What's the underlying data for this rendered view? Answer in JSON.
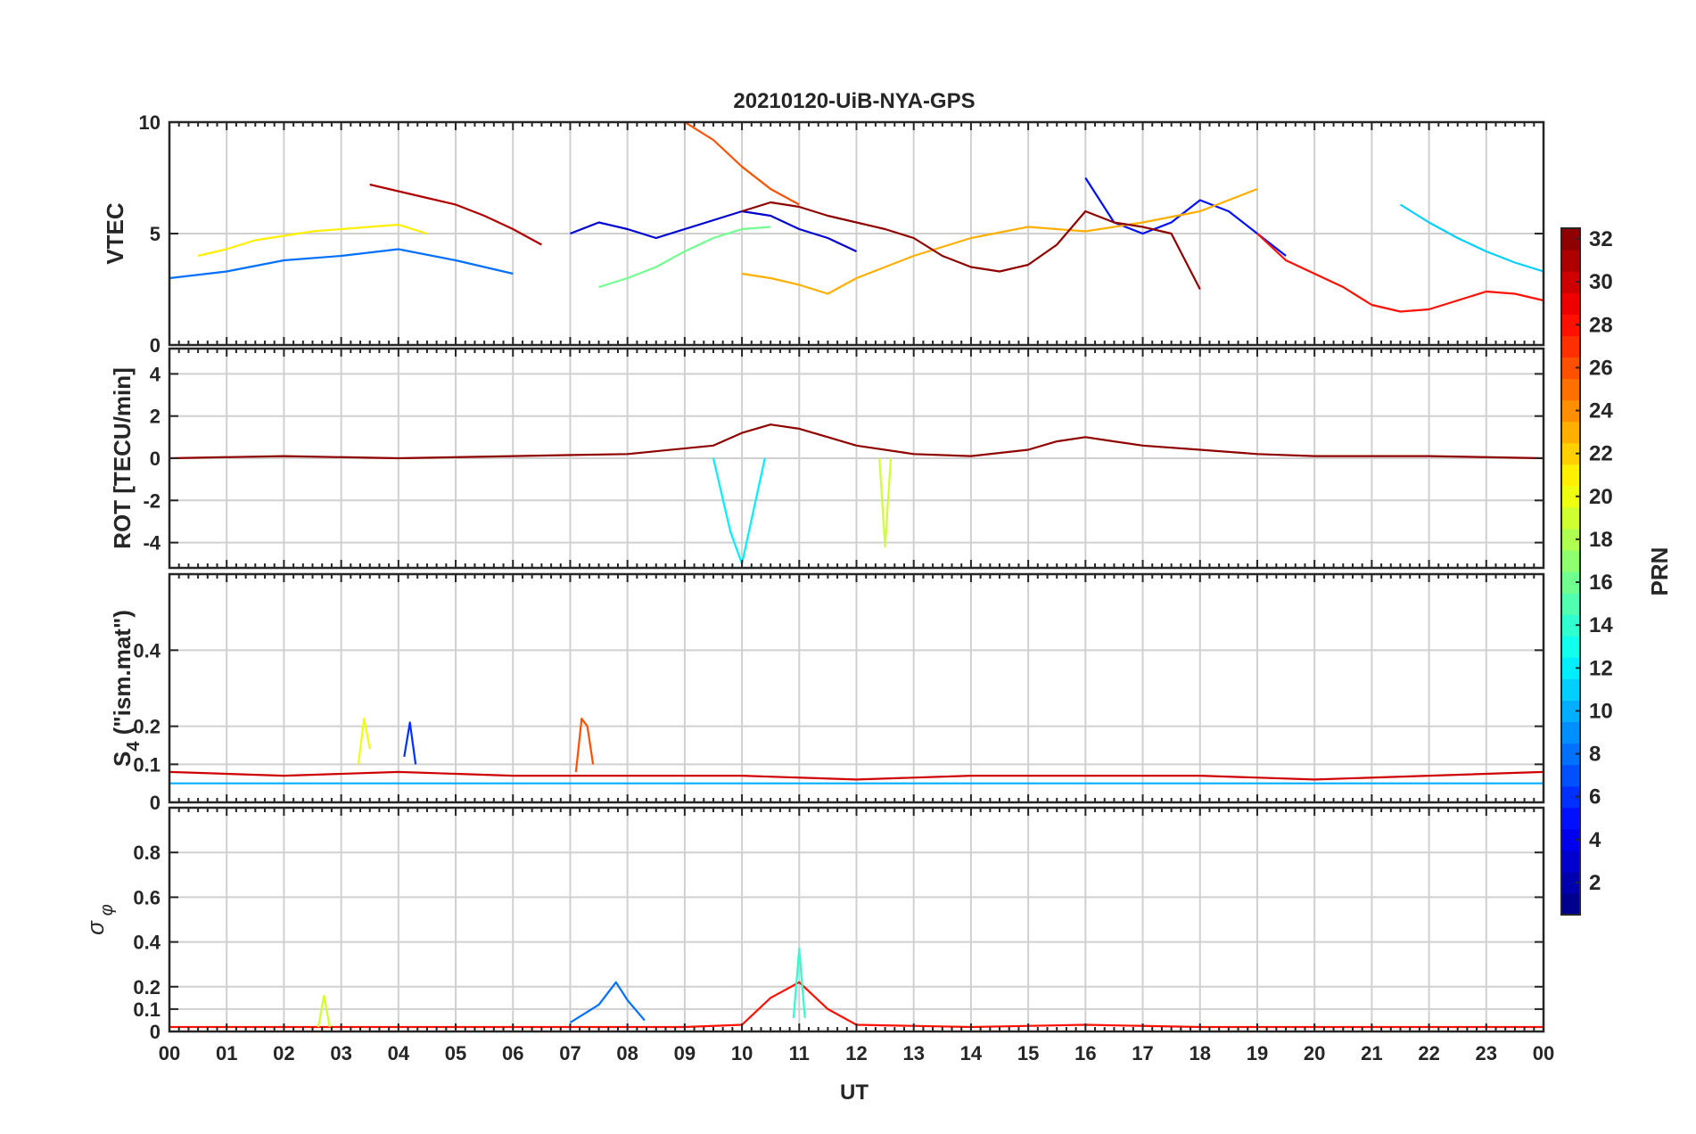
{
  "chart_data": {
    "type": "line",
    "title": "20210120-UiB-NYA-GPS",
    "xlabel": "UT",
    "x_ticks": [
      "00",
      "01",
      "02",
      "03",
      "04",
      "05",
      "06",
      "07",
      "08",
      "09",
      "10",
      "11",
      "12",
      "13",
      "14",
      "15",
      "16",
      "17",
      "18",
      "19",
      "20",
      "21",
      "22",
      "23",
      "00"
    ],
    "xlim": [
      0,
      24
    ],
    "panels": [
      {
        "name": "vtec",
        "ylabel": "VTEC",
        "ylim": [
          0,
          10
        ],
        "yticks": [
          0,
          5,
          10
        ],
        "series": [
          {
            "prn": 3,
            "x": [
              7.0,
              7.5,
              8.0,
              8.5,
              9.0,
              9.5,
              10.0,
              10.5,
              11.0,
              11.5,
              12.0
            ],
            "y": [
              5.0,
              5.5,
              5.2,
              4.8,
              5.2,
              5.6,
              6.0,
              5.8,
              5.2,
              4.8,
              4.2
            ]
          },
          {
            "prn": 5,
            "x": [
              16.0,
              16.5,
              17.0,
              17.5,
              18.0,
              18.5,
              19.0,
              19.5
            ],
            "y": [
              7.5,
              5.5,
              5.0,
              5.5,
              6.5,
              6.0,
              5.0,
              4.0
            ]
          },
          {
            "prn": 8,
            "x": [
              0.0,
              1.0,
              2.0,
              3.0,
              4.0,
              5.0,
              6.0
            ],
            "y": [
              3.0,
              3.3,
              3.8,
              4.0,
              4.3,
              3.8,
              3.2
            ]
          },
          {
            "prn": 11,
            "x": [
              21.5,
              22.0,
              22.5,
              23.0,
              23.5,
              24.0
            ],
            "y": [
              6.3,
              5.5,
              4.8,
              4.2,
              3.7,
              3.3
            ]
          },
          {
            "prn": 16,
            "x": [
              7.5,
              8.0,
              8.5,
              9.0,
              9.5,
              10.0,
              10.5
            ],
            "y": [
              2.6,
              3.0,
              3.5,
              4.2,
              4.8,
              5.2,
              5.3
            ]
          },
          {
            "prn": 21,
            "x": [
              0.5,
              1.0,
              1.5,
              2.0,
              2.5,
              3.0,
              3.5,
              4.0,
              4.5
            ],
            "y": [
              4.0,
              4.3,
              4.7,
              4.9,
              5.1,
              5.2,
              5.3,
              5.4,
              5.0
            ]
          },
          {
            "prn": 23,
            "x": [
              10.0,
              10.5,
              11.0,
              11.5,
              12.0,
              13.0,
              14.0,
              15.0,
              16.0,
              17.0,
              18.0,
              19.0
            ],
            "y": [
              3.2,
              3.0,
              2.7,
              2.3,
              3.0,
              4.0,
              4.8,
              5.3,
              5.1,
              5.5,
              6.0,
              7.0
            ]
          },
          {
            "prn": 26,
            "x": [
              9.0,
              9.5,
              10.0,
              10.5,
              11.0
            ],
            "y": [
              10.0,
              9.2,
              8.0,
              7.0,
              6.3
            ]
          },
          {
            "prn": 28,
            "x": [
              19.0,
              19.5,
              20.0,
              20.5,
              21.0,
              21.5,
              22.0,
              22.5,
              23.0,
              23.5,
              24.0
            ],
            "y": [
              5.0,
              3.8,
              3.2,
              2.6,
              1.8,
              1.5,
              1.6,
              2.0,
              2.4,
              2.3,
              2.0
            ]
          },
          {
            "prn": 31,
            "x": [
              3.5,
              4.0,
              4.5,
              5.0,
              5.5,
              6.0,
              6.5
            ],
            "y": [
              7.2,
              6.9,
              6.6,
              6.3,
              5.8,
              5.2,
              4.5
            ]
          },
          {
            "prn": 32,
            "x": [
              10.0,
              10.5,
              11.0,
              11.5,
              12.0,
              12.5,
              13.0,
              13.5,
              14.0,
              14.5,
              15.0,
              15.5,
              16.0,
              16.5,
              17.0,
              17.5,
              18.0
            ],
            "y": [
              6.0,
              6.4,
              6.2,
              5.8,
              5.5,
              5.2,
              4.8,
              4.0,
              3.5,
              3.3,
              3.6,
              4.5,
              6.0,
              5.5,
              5.3,
              5.0,
              2.5
            ]
          }
        ]
      },
      {
        "name": "rot",
        "ylabel": "ROT [TECU/min]",
        "ylim": [
          -5.2,
          5.2
        ],
        "yticks": [
          -4,
          -2,
          0,
          2,
          4
        ],
        "series": [
          {
            "prn": 32,
            "x": [
              0.0,
              2.0,
              4.0,
              6.0,
              8.0,
              9.5,
              10.0,
              10.5,
              11.0,
              11.5,
              12.0,
              13.0,
              14.0,
              15.0,
              15.5,
              16.0,
              16.5,
              17.0,
              18.0,
              19.0,
              20.0,
              22.0,
              24.0
            ],
            "y": [
              0.0,
              0.1,
              0.0,
              0.1,
              0.2,
              0.6,
              1.2,
              1.6,
              1.4,
              1.0,
              0.6,
              0.2,
              0.1,
              0.4,
              0.8,
              1.0,
              0.8,
              0.6,
              0.4,
              0.2,
              0.1,
              0.1,
              0.0
            ]
          },
          {
            "prn": 12,
            "x": [
              9.5,
              9.8,
              10.0,
              10.2,
              10.4
            ],
            "y": [
              0.0,
              -3.5,
              -5.0,
              -2.5,
              0.0
            ]
          },
          {
            "prn": 19,
            "x": [
              12.4,
              12.5,
              12.6
            ],
            "y": [
              0.0,
              -4.2,
              0.0
            ]
          }
        ]
      },
      {
        "name": "s4",
        "ylabel": "S4 (\"ism.mat\")",
        "ylim": [
          0,
          0.6
        ],
        "yticks": [
          0,
          0.1,
          0.2,
          0.4
        ],
        "series": [
          {
            "prn": 30,
            "x": [
              0.0,
              2.0,
              4.0,
              6.0,
              8.0,
              10.0,
              12.0,
              14.0,
              16.0,
              18.0,
              20.0,
              22.0,
              24.0
            ],
            "y": [
              0.08,
              0.07,
              0.08,
              0.07,
              0.07,
              0.07,
              0.06,
              0.07,
              0.07,
              0.07,
              0.06,
              0.07,
              0.08
            ]
          },
          {
            "prn": 10,
            "x": [
              0.0,
              2.0,
              4.0,
              6.0,
              8.0,
              10.0,
              12.0,
              14.0,
              16.0,
              18.0,
              20.0,
              22.0,
              24.0
            ],
            "y": [
              0.05,
              0.05,
              0.05,
              0.05,
              0.05,
              0.05,
              0.05,
              0.05,
              0.05,
              0.05,
              0.05,
              0.05,
              0.05
            ]
          },
          {
            "prn": 20,
            "x": [
              3.3,
              3.4,
              3.5
            ],
            "y": [
              0.1,
              0.22,
              0.14
            ]
          },
          {
            "prn": 6,
            "x": [
              4.1,
              4.2,
              4.3
            ],
            "y": [
              0.12,
              0.21,
              0.1
            ]
          },
          {
            "prn": 26,
            "x": [
              7.1,
              7.2,
              7.3,
              7.4
            ],
            "y": [
              0.08,
              0.22,
              0.2,
              0.1
            ]
          }
        ]
      },
      {
        "name": "sigma",
        "ylabel": "σ φ",
        "ylim": [
          0,
          1
        ],
        "yticks": [
          0,
          0.1,
          0.2,
          0.4,
          0.6,
          0.8
        ],
        "series": [
          {
            "prn": 28,
            "x": [
              0.0,
              2.0,
              4.0,
              6.0,
              8.0,
              9.0,
              10.0,
              10.5,
              11.0,
              11.5,
              12.0,
              14.0,
              16.0,
              18.0,
              20.0,
              22.0,
              24.0
            ],
            "y": [
              0.02,
              0.02,
              0.02,
              0.02,
              0.02,
              0.02,
              0.03,
              0.15,
              0.22,
              0.1,
              0.03,
              0.02,
              0.03,
              0.02,
              0.02,
              0.02,
              0.02
            ]
          },
          {
            "prn": 8,
            "x": [
              7.0,
              7.5,
              7.8,
              8.0,
              8.3
            ],
            "y": [
              0.04,
              0.12,
              0.22,
              0.14,
              0.05
            ]
          },
          {
            "prn": 14,
            "x": [
              10.9,
              11.0,
              11.1
            ],
            "y": [
              0.06,
              0.37,
              0.06
            ]
          },
          {
            "prn": 19,
            "x": [
              2.6,
              2.7,
              2.8
            ],
            "y": [
              0.02,
              0.16,
              0.02
            ]
          }
        ]
      }
    ],
    "colorbar": {
      "label": "PRN",
      "range": [
        1,
        32
      ],
      "ticks": [
        2,
        4,
        6,
        8,
        10,
        12,
        14,
        16,
        18,
        20,
        22,
        24,
        26,
        28,
        30,
        32
      ],
      "colormap": "jet"
    }
  }
}
